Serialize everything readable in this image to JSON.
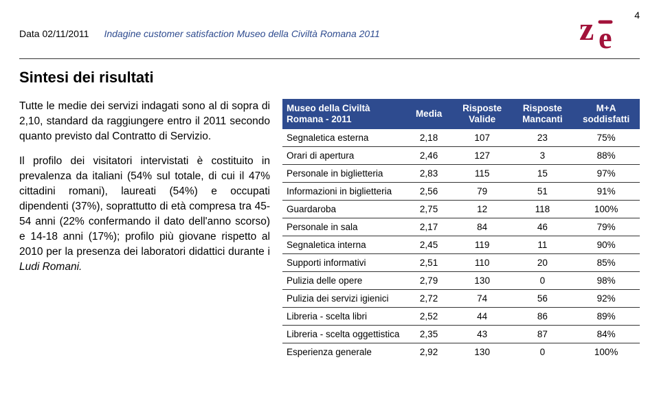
{
  "header": {
    "date": "Data 02/11/2011",
    "survey_title": "Indagine customer satisfaction Museo della Civiltà Romana 2011",
    "page_number": "4"
  },
  "logo": {
    "fill": "#a2123a",
    "accent": "#a2123a"
  },
  "section_title": "Sintesi dei risultati",
  "body": {
    "p1_a": "Tutte le medie dei servizi indagati sono al di sopra di 2,10, standard da raggiungere entro il 2011 secondo quanto previsto dal Contratto di Servizio.",
    "p2_a": "Il profilo dei visitatori intervistati è costituito in prevalenza da italiani (54% sul totale, di cui il 47% cittadini romani), laureati (54%) e occupati dipendenti (37%), soprattutto di età compresa tra 45-54 anni (22% confermando il dato dell'anno scorso) e 14-18 anni (17%); profilo più giovane rispetto al 2010 per la presenza dei laboratori didattici durante i ",
    "p2_ludi": "Ludi Romani."
  },
  "table": {
    "header": {
      "row_label": "Museo della Civiltà Romana - 2011",
      "media": "Media",
      "valide": "Risposte Valide",
      "mancanti": "Risposte Mancanti",
      "sodd": "M+A soddisfatti"
    },
    "rows": [
      {
        "label": "Segnaletica esterna",
        "media": "2,18",
        "valide": "107",
        "manc": "23",
        "sodd": "75%"
      },
      {
        "label": "Orari di apertura",
        "media": "2,46",
        "valide": "127",
        "manc": "3",
        "sodd": "88%"
      },
      {
        "label": "Personale in biglietteria",
        "media": "2,83",
        "valide": "115",
        "manc": "15",
        "sodd": "97%"
      },
      {
        "label": "Informazioni in biglietteria",
        "media": "2,56",
        "valide": "79",
        "manc": "51",
        "sodd": "91%"
      },
      {
        "label": "Guardaroba",
        "media": "2,75",
        "valide": "12",
        "manc": "118",
        "sodd": "100%"
      },
      {
        "label": "Personale in sala",
        "media": "2,17",
        "valide": "84",
        "manc": "46",
        "sodd": "79%"
      },
      {
        "label": "Segnaletica interna",
        "media": "2,45",
        "valide": "119",
        "manc": "11",
        "sodd": "90%"
      },
      {
        "label": "Supporti informativi",
        "media": "2,51",
        "valide": "110",
        "manc": "20",
        "sodd": "85%"
      },
      {
        "label": "Pulizia delle opere",
        "media": "2,79",
        "valide": "130",
        "manc": "0",
        "sodd": "98%"
      },
      {
        "label": "Pulizia dei servizi igienici",
        "media": "2,72",
        "valide": "74",
        "manc": "56",
        "sodd": "92%"
      },
      {
        "label": "Libreria - scelta libri",
        "media": "2,52",
        "valide": "44",
        "manc": "86",
        "sodd": "89%"
      },
      {
        "label": "Libreria - scelta oggettistica",
        "media": "2,35",
        "valide": "43",
        "manc": "87",
        "sodd": "84%"
      },
      {
        "label": "Esperienza generale",
        "media": "2,92",
        "valide": "130",
        "manc": "0",
        "sodd": "100%"
      }
    ]
  },
  "colors": {
    "header_bg": "#2e4b8f",
    "header_fg": "#ffffff",
    "rule": "#333333",
    "brand": "#a2123a"
  }
}
